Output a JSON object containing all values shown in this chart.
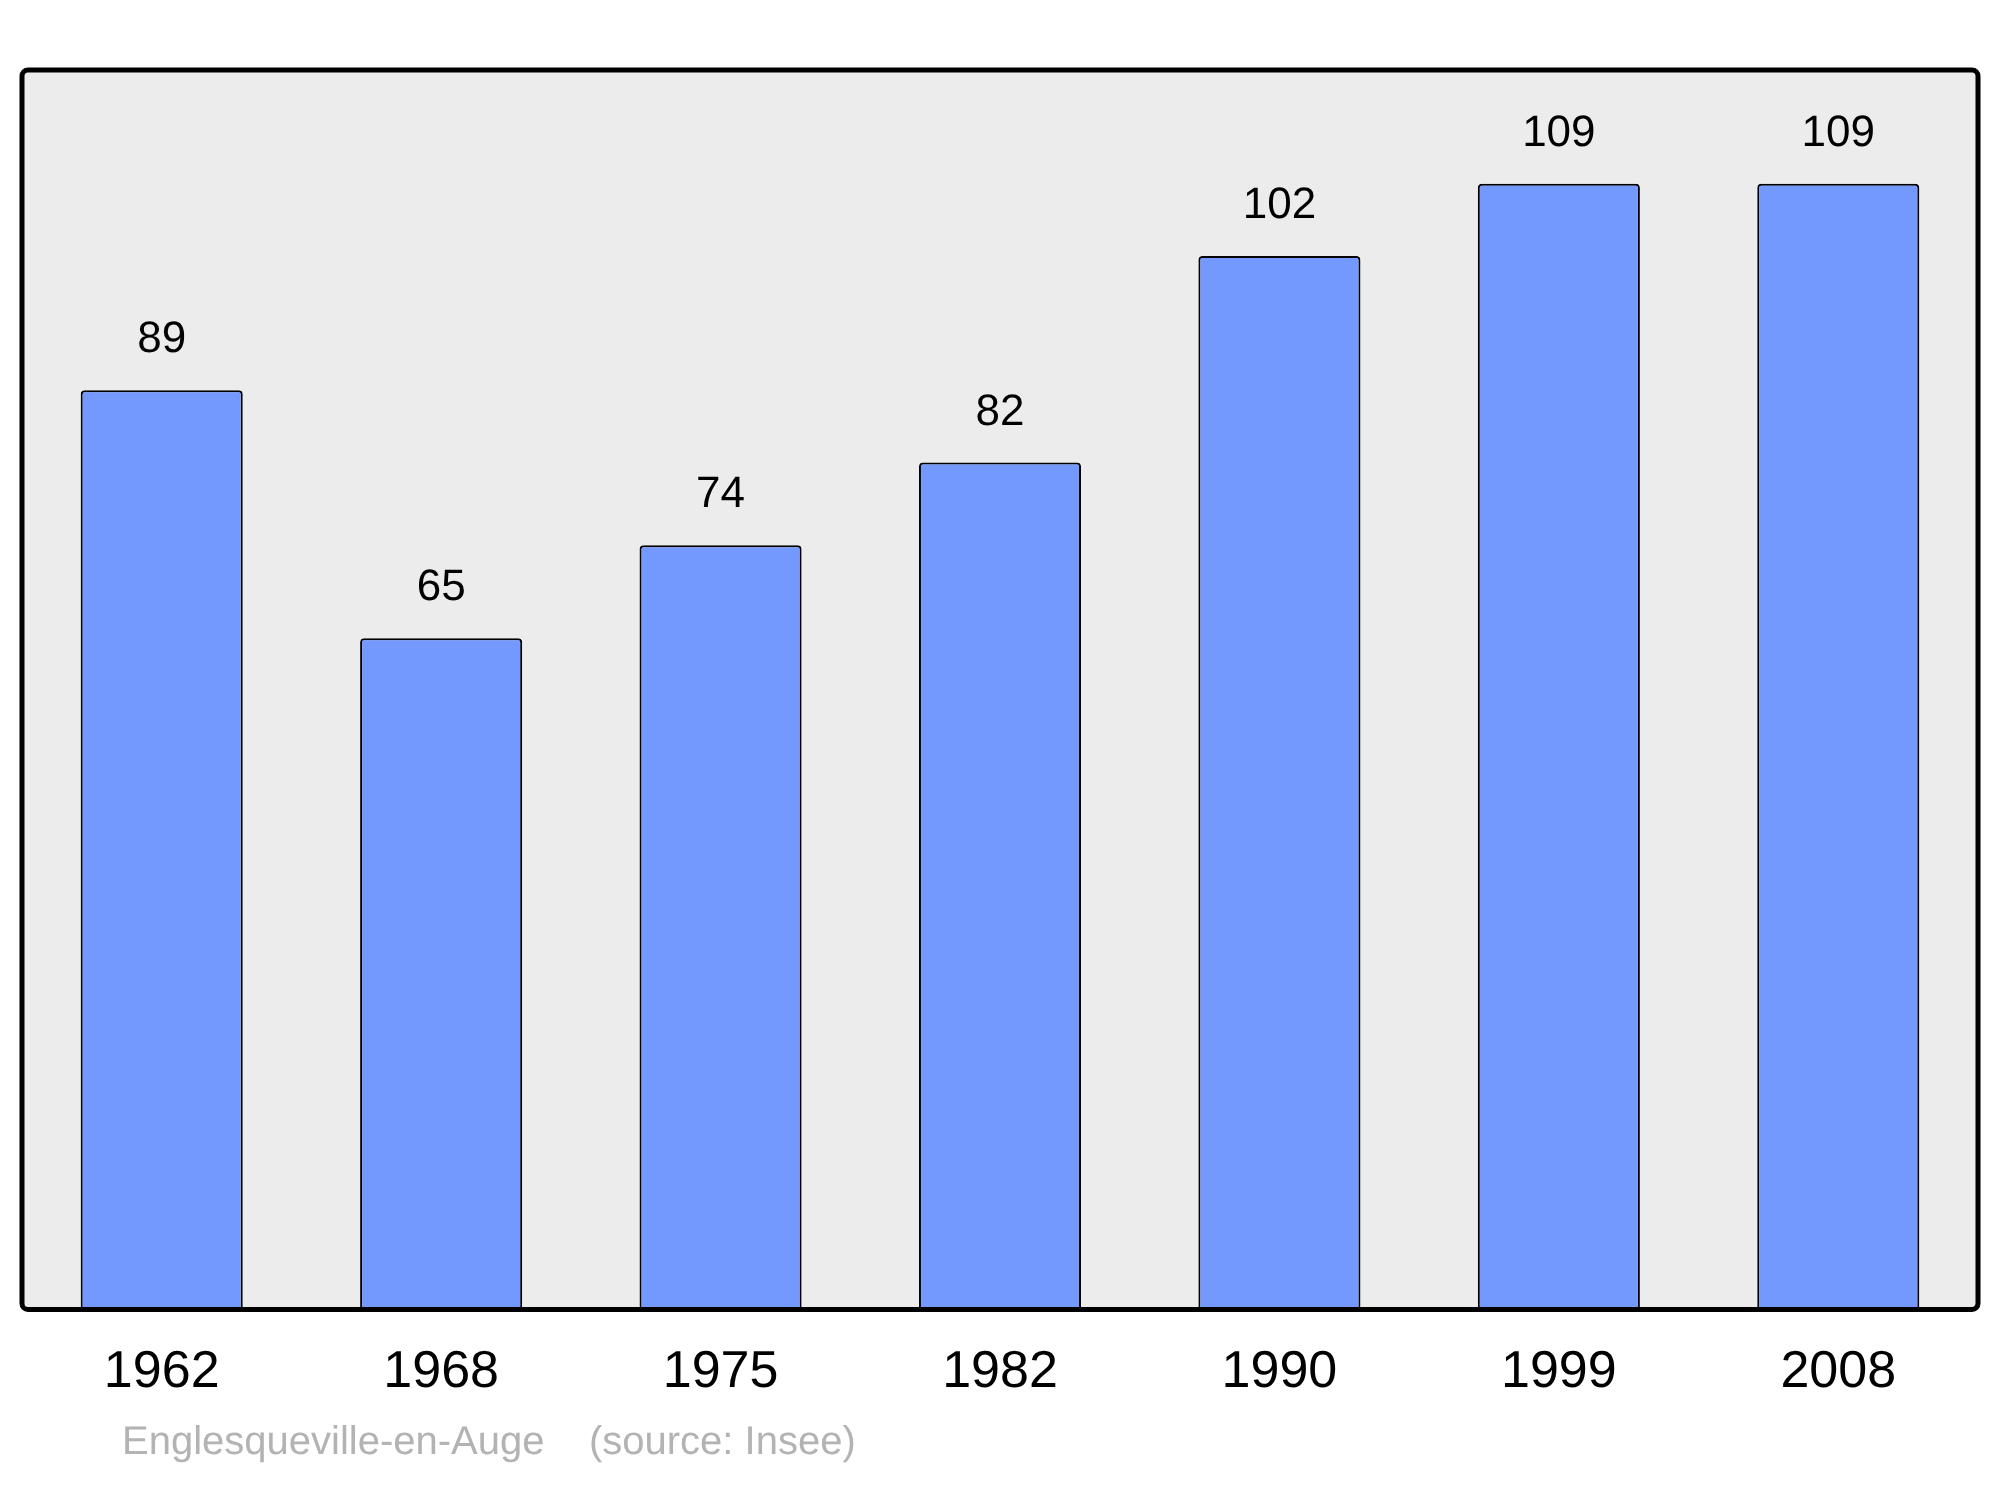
{
  "chart_data": {
    "type": "bar",
    "categories": [
      "1962",
      "1968",
      "1975",
      "1982",
      "1990",
      "1999",
      "2008"
    ],
    "values": [
      89,
      65,
      74,
      82,
      102,
      109,
      109
    ],
    "color": "#7399ff",
    "data_labels": true,
    "grid": false,
    "legend": false,
    "annotations": [
      "Englesqueville-en-Auge    (source: Insee)"
    ]
  }
}
